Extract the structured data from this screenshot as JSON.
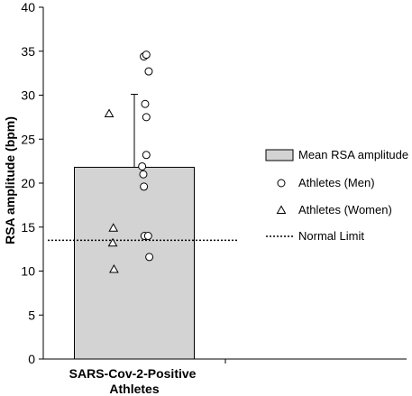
{
  "chart_data": {
    "type": "bar",
    "ylabel": "RSA amplitude (bpm)",
    "ylim": [
      0,
      40
    ],
    "yticks": [
      0,
      5,
      10,
      15,
      20,
      25,
      30,
      35,
      40
    ],
    "categories": [
      [
        "SARS-Cov-2-Positive",
        "Athletes"
      ]
    ],
    "grid": false,
    "legend_position": "right",
    "series": [
      {
        "name": "Mean RSA amplitude",
        "kind": "bar",
        "values": [
          21.8
        ],
        "error_upper": [
          30.1
        ],
        "color": "#d3d3d3"
      },
      {
        "name": "Athletes (Men)",
        "kind": "scatter",
        "marker": "circle",
        "points": [
          {
            "x": 0.16,
            "y": 34.4
          },
          {
            "x": 0.2,
            "y": 34.6
          },
          {
            "x": 0.24,
            "y": 32.7
          },
          {
            "x": 0.18,
            "y": 29.0
          },
          {
            "x": 0.2,
            "y": 27.5
          },
          {
            "x": 0.2,
            "y": 23.2
          },
          {
            "x": 0.13,
            "y": 21.9
          },
          {
            "x": 0.15,
            "y": 21.0
          },
          {
            "x": 0.16,
            "y": 19.6
          },
          {
            "x": 0.17,
            "y": 14.0
          },
          {
            "x": 0.23,
            "y": 14.0
          },
          {
            "x": 0.25,
            "y": 11.6
          }
        ]
      },
      {
        "name": "Athletes (Women)",
        "kind": "scatter",
        "marker": "triangle",
        "points": [
          {
            "x": -0.42,
            "y": 27.9
          },
          {
            "x": -0.35,
            "y": 14.9
          },
          {
            "x": -0.36,
            "y": 13.2
          },
          {
            "x": -0.34,
            "y": 10.2
          }
        ]
      },
      {
        "name": "Normal Limit",
        "kind": "hline",
        "value": 13.5
      }
    ]
  }
}
